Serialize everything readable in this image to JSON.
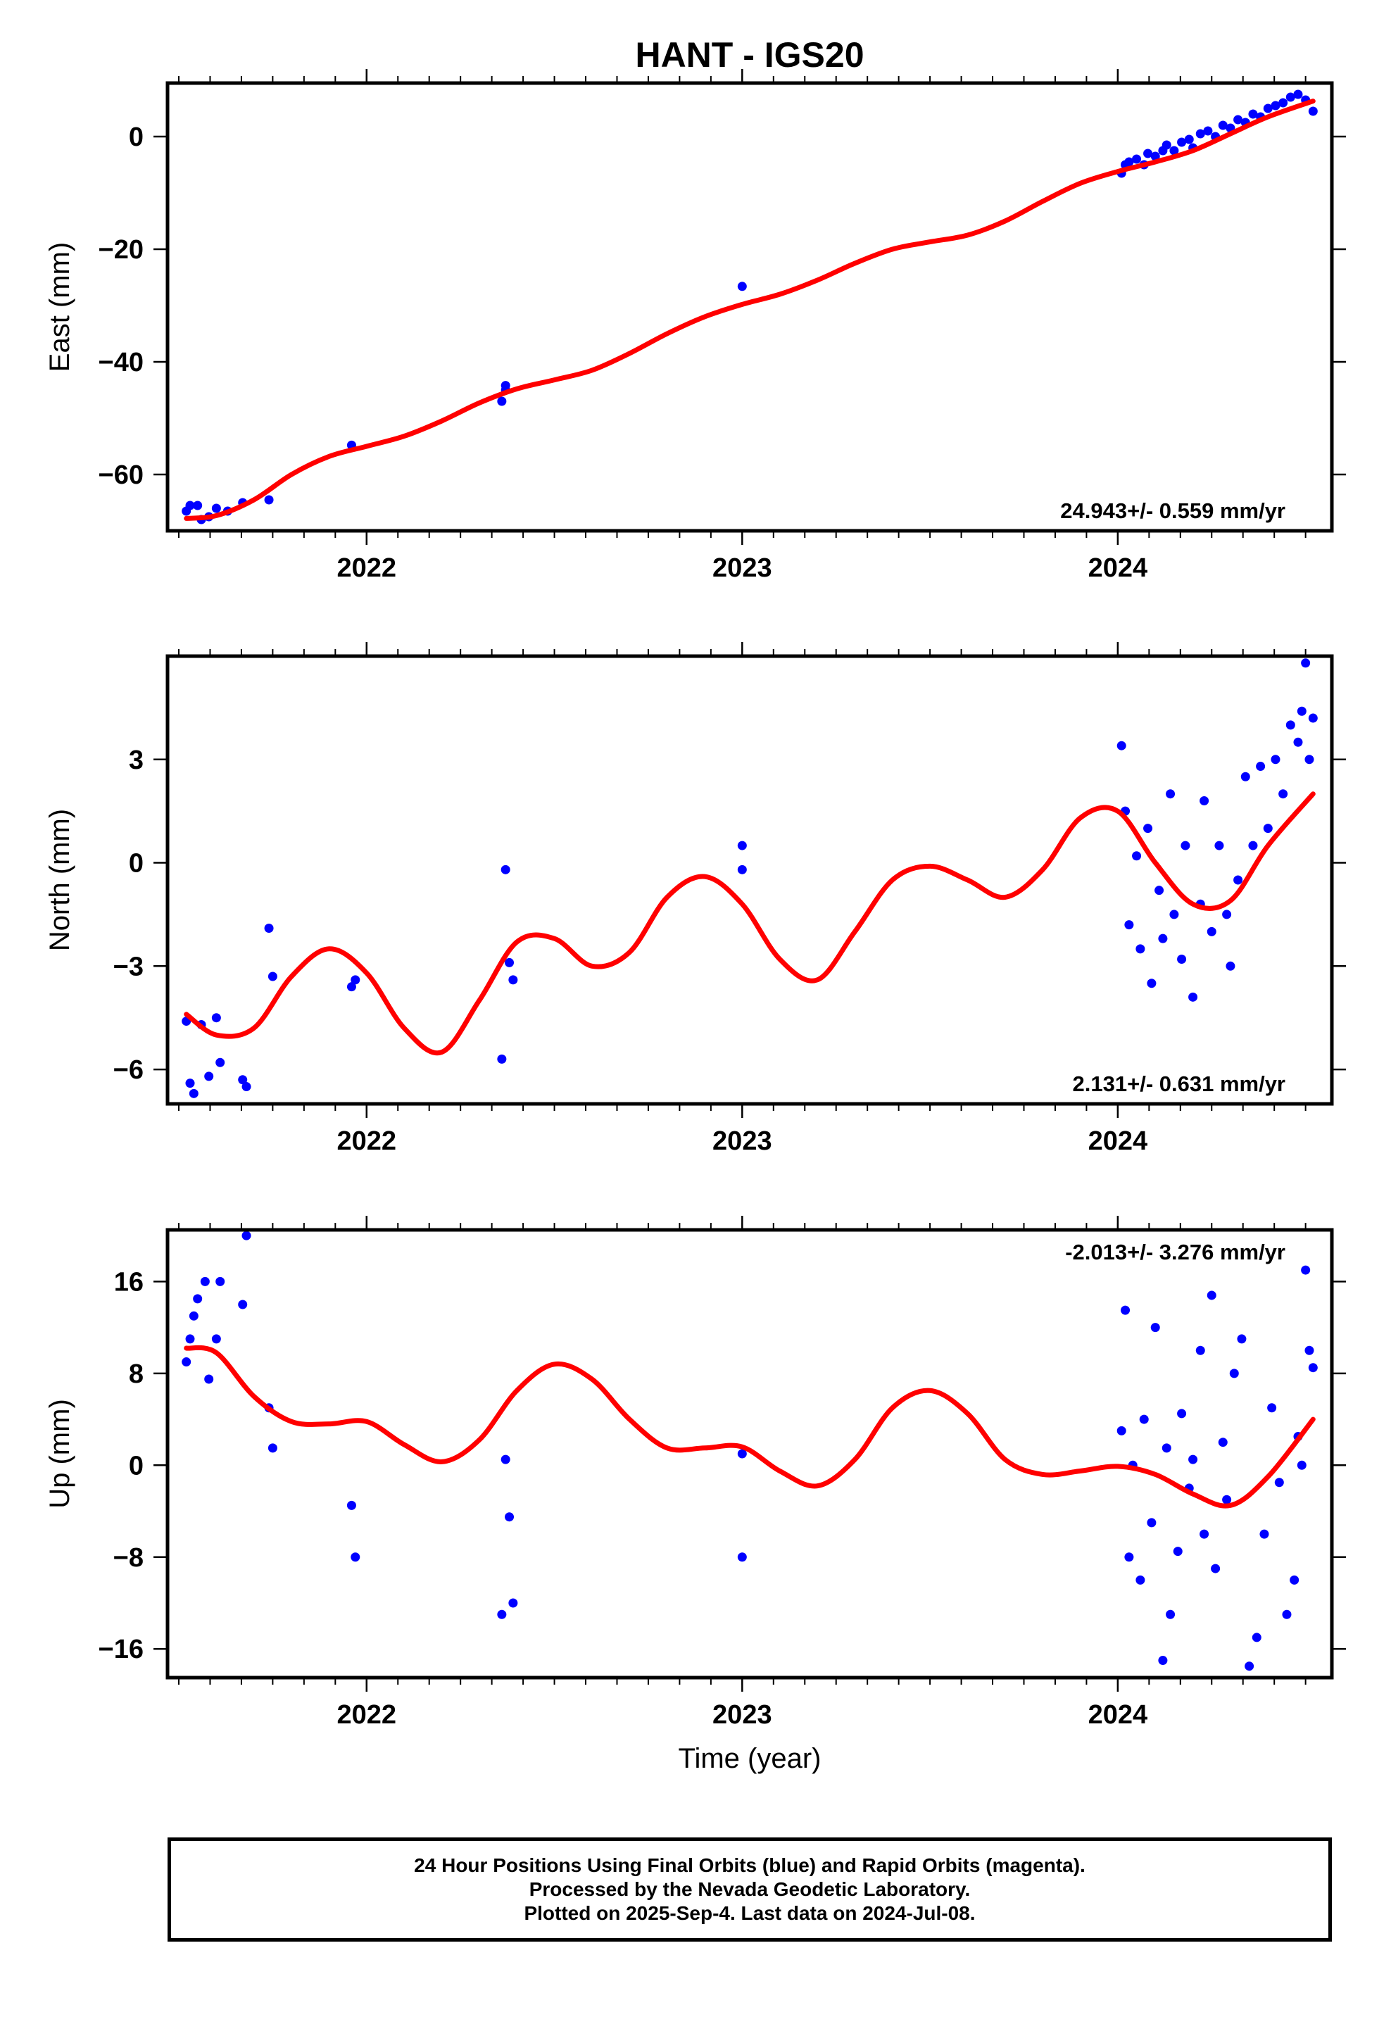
{
  "figure": {
    "title": "HANT - IGS20"
  },
  "colors": {
    "final_orbits": "#0000ff",
    "rapid_orbits": "#ff00ff",
    "model": "#ff0000",
    "frame": "#000000"
  },
  "footer": {
    "line1": "24 Hour Positions Using Final Orbits (blue) and Rapid Orbits (magenta).",
    "line2": "Processed by the Nevada Geodetic Laboratory.",
    "line3": "Plotted on 2025-Sep-4. Last data on 2024-Jul-08."
  },
  "chart_data": [
    {
      "type": "scatter",
      "name": "east",
      "title": "",
      "xlabel": "",
      "ylabel": "East (mm)",
      "xlim": [
        2021.47,
        2024.57
      ],
      "ylim": [
        -70,
        9.5
      ],
      "xticks": [
        2022,
        2023,
        2024
      ],
      "yticks": [
        -60,
        -40,
        -20,
        0
      ],
      "rate_label": "24.943+/- 0.559 mm/yr",
      "grid": false,
      "model_curve": {
        "x": [
          2021.52,
          2021.6,
          2021.7,
          2021.8,
          2021.9,
          2022.0,
          2022.1,
          2022.2,
          2022.3,
          2022.4,
          2022.5,
          2022.6,
          2022.7,
          2022.8,
          2022.9,
          2023.0,
          2023.1,
          2023.2,
          2023.3,
          2023.4,
          2023.5,
          2023.6,
          2023.7,
          2023.8,
          2023.9,
          2024.0,
          2024.1,
          2024.2,
          2024.3,
          2024.4,
          2024.52
        ],
        "y": [
          -67.8,
          -67.3,
          -64.5,
          -60.0,
          -56.8,
          -55.0,
          -53.2,
          -50.5,
          -47.3,
          -44.8,
          -43.2,
          -41.5,
          -38.5,
          -35.0,
          -32.0,
          -29.8,
          -28.0,
          -25.5,
          -22.5,
          -20.0,
          -18.7,
          -17.5,
          -15.0,
          -11.5,
          -8.3,
          -6.2,
          -4.5,
          -2.5,
          0.5,
          3.5,
          6.3
        ]
      },
      "series": [
        {
          "name": "",
          "x": [
            2021.52,
            2021.53,
            2021.55,
            2021.56,
            2021.58,
            2021.6,
            2021.63,
            2021.67,
            2021.74,
            2021.96,
            2022.36,
            2022.37,
            2022.37,
            2023.0,
            2024.01,
            2024.02,
            2024.03,
            2024.05,
            2024.07,
            2024.08,
            2024.1,
            2024.12,
            2024.13,
            2024.15,
            2024.17,
            2024.19,
            2024.2,
            2024.22,
            2024.24,
            2024.26,
            2024.28,
            2024.3,
            2024.32,
            2024.34,
            2024.36,
            2024.38,
            2024.4,
            2024.42,
            2024.44,
            2024.46,
            2024.48,
            2024.5,
            2024.52
          ],
          "y": [
            -66.5,
            -65.5,
            -65.5,
            -68.0,
            -67.5,
            -66.0,
            -66.5,
            -65.0,
            -64.5,
            -54.8,
            -47.0,
            -45.0,
            -44.2,
            -26.6,
            -6.5,
            -5.0,
            -4.5,
            -4.0,
            -5.0,
            -3.0,
            -3.5,
            -2.5,
            -1.5,
            -2.5,
            -1.0,
            -0.5,
            -2.0,
            0.5,
            1.0,
            0.0,
            2.0,
            1.5,
            3.0,
            2.5,
            4.0,
            3.5,
            5.0,
            5.5,
            6.0,
            7.0,
            7.5,
            6.5,
            4.5
          ]
        }
      ]
    },
    {
      "type": "scatter",
      "name": "north",
      "title": "",
      "xlabel": "",
      "ylabel": "North (mm)",
      "xlim": [
        2021.47,
        2024.57
      ],
      "ylim": [
        -7,
        6
      ],
      "xticks": [
        2022,
        2023,
        2024
      ],
      "yticks": [
        -6,
        -3,
        0,
        3
      ],
      "rate_label": "2.131+/- 0.631 mm/yr",
      "grid": false,
      "model_curve": {
        "x": [
          2021.52,
          2021.6,
          2021.7,
          2021.8,
          2021.9,
          2022.0,
          2022.1,
          2022.2,
          2022.3,
          2022.4,
          2022.5,
          2022.6,
          2022.7,
          2022.8,
          2022.9,
          2023.0,
          2023.1,
          2023.2,
          2023.3,
          2023.4,
          2023.5,
          2023.6,
          2023.7,
          2023.8,
          2023.9,
          2024.0,
          2024.1,
          2024.2,
          2024.3,
          2024.4,
          2024.52
        ],
        "y": [
          -4.4,
          -5.0,
          -4.8,
          -3.3,
          -2.5,
          -3.2,
          -4.8,
          -5.5,
          -4.0,
          -2.3,
          -2.2,
          -3.0,
          -2.6,
          -1.0,
          -0.4,
          -1.2,
          -2.8,
          -3.4,
          -2.0,
          -0.5,
          -0.1,
          -0.5,
          -1.0,
          -0.2,
          1.3,
          1.5,
          0.0,
          -1.2,
          -1.1,
          0.5,
          2.0
        ]
      },
      "series": [
        {
          "name": "",
          "x": [
            2021.52,
            2021.53,
            2021.54,
            2021.56,
            2021.58,
            2021.6,
            2021.61,
            2021.67,
            2021.68,
            2021.74,
            2021.75,
            2021.96,
            2021.97,
            2022.36,
            2022.37,
            2022.38,
            2022.39,
            2023.0,
            2023.0,
            2024.01,
            2024.02,
            2024.03,
            2024.05,
            2024.06,
            2024.08,
            2024.09,
            2024.11,
            2024.12,
            2024.14,
            2024.15,
            2024.17,
            2024.18,
            2024.2,
            2024.22,
            2024.23,
            2024.25,
            2024.27,
            2024.29,
            2024.3,
            2024.32,
            2024.34,
            2024.36,
            2024.38,
            2024.4,
            2024.42,
            2024.44,
            2024.46,
            2024.48,
            2024.49,
            2024.5,
            2024.51,
            2024.52
          ],
          "y": [
            -4.6,
            -6.4,
            -6.7,
            -4.7,
            -6.2,
            -4.5,
            -5.8,
            -6.3,
            -6.5,
            -1.9,
            -3.3,
            -3.6,
            -3.4,
            -5.7,
            -0.2,
            -2.9,
            -3.4,
            0.5,
            -0.2,
            3.4,
            1.5,
            -1.8,
            0.2,
            -2.5,
            1.0,
            -3.5,
            -0.8,
            -2.2,
            2.0,
            -1.5,
            -2.8,
            0.5,
            -3.9,
            -1.2,
            1.8,
            -2.0,
            0.5,
            -1.5,
            -3.0,
            -0.5,
            2.5,
            0.5,
            2.8,
            1.0,
            3.0,
            2.0,
            4.0,
            3.5,
            4.4,
            5.8,
            3.0,
            4.2
          ]
        }
      ]
    },
    {
      "type": "scatter",
      "name": "up",
      "title": "",
      "xlabel": "Time (year)",
      "ylabel": "Up (mm)",
      "xlim": [
        2021.47,
        2024.57
      ],
      "ylim": [
        -18.5,
        20.5
      ],
      "xticks": [
        2022,
        2023,
        2024
      ],
      "yticks": [
        -16,
        -8,
        0,
        8,
        16
      ],
      "rate_label": "-2.013+/- 3.276 mm/yr",
      "grid": false,
      "model_curve": {
        "x": [
          2021.52,
          2021.6,
          2021.7,
          2021.8,
          2021.9,
          2022.0,
          2022.1,
          2022.2,
          2022.3,
          2022.4,
          2022.5,
          2022.6,
          2022.7,
          2022.8,
          2022.9,
          2023.0,
          2023.1,
          2023.2,
          2023.3,
          2023.4,
          2023.5,
          2023.6,
          2023.7,
          2023.8,
          2023.9,
          2024.0,
          2024.1,
          2024.2,
          2024.3,
          2024.4,
          2024.52
        ],
        "y": [
          10.2,
          9.8,
          6.0,
          3.8,
          3.6,
          3.8,
          1.8,
          0.3,
          2.2,
          6.5,
          8.8,
          7.5,
          4.0,
          1.5,
          1.5,
          1.6,
          -0.5,
          -1.8,
          0.5,
          5.0,
          6.5,
          4.5,
          0.5,
          -0.8,
          -0.5,
          -0.1,
          -0.8,
          -2.5,
          -3.5,
          -1.0,
          4.0
        ]
      },
      "series": [
        {
          "name": "",
          "x": [
            2021.52,
            2021.53,
            2021.54,
            2021.55,
            2021.57,
            2021.58,
            2021.6,
            2021.61,
            2021.67,
            2021.68,
            2021.74,
            2021.75,
            2021.96,
            2021.97,
            2022.36,
            2022.37,
            2022.38,
            2022.39,
            2023.0,
            2023.0,
            2024.01,
            2024.02,
            2024.03,
            2024.04,
            2024.06,
            2024.07,
            2024.09,
            2024.1,
            2024.12,
            2024.13,
            2024.14,
            2024.16,
            2024.17,
            2024.19,
            2024.2,
            2024.22,
            2024.23,
            2024.25,
            2024.26,
            2024.28,
            2024.29,
            2024.31,
            2024.33,
            2024.35,
            2024.37,
            2024.39,
            2024.41,
            2024.43,
            2024.45,
            2024.47,
            2024.48,
            2024.49,
            2024.5,
            2024.51,
            2024.52
          ],
          "y": [
            9.0,
            11.0,
            13.0,
            14.5,
            16.0,
            7.5,
            11.0,
            16.0,
            14.0,
            20.0,
            5.0,
            1.5,
            -3.5,
            -8.0,
            -13.0,
            0.5,
            -4.5,
            -12.0,
            1.0,
            -8.0,
            3.0,
            13.5,
            -8.0,
            0.0,
            -10.0,
            4.0,
            -5.0,
            12.0,
            -17.0,
            1.5,
            -13.0,
            -7.5,
            4.5,
            -2.0,
            0.5,
            10.0,
            -6.0,
            14.8,
            -9.0,
            2.0,
            -3.0,
            8.0,
            11.0,
            -17.5,
            -15.0,
            -6.0,
            5.0,
            -1.5,
            -13.0,
            -10.0,
            2.5,
            0.0,
            17.0,
            10.0,
            8.5
          ]
        }
      ]
    }
  ]
}
